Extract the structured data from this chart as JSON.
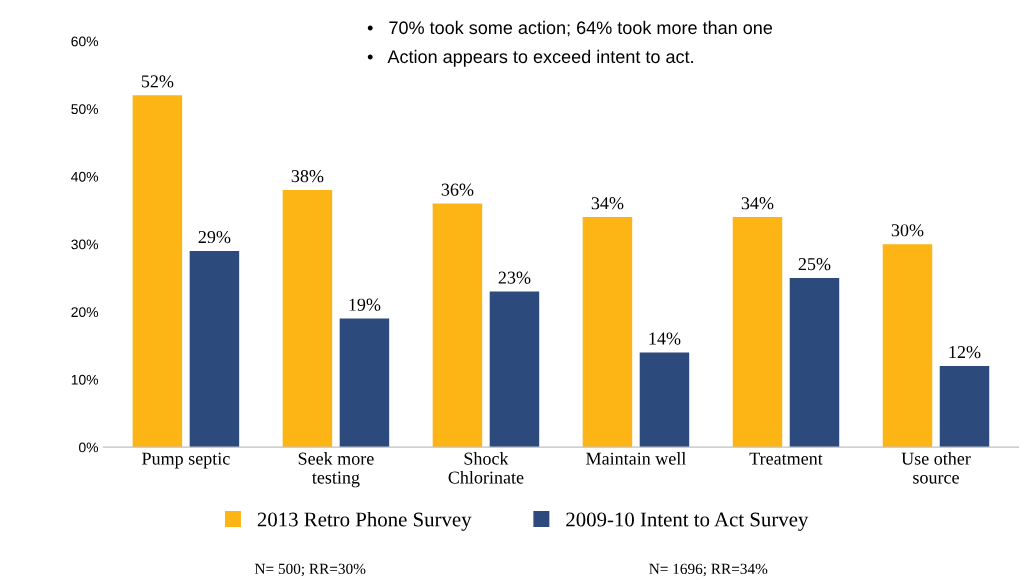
{
  "chart_data": {
    "type": "bar",
    "categories": [
      "Pump septic",
      "Seek more testing",
      "Shock Chlorinate",
      "Maintain well",
      "Treatment",
      "Use other source"
    ],
    "series": [
      {
        "name": "2013 Retro Phone Survey",
        "color": "#fdb515",
        "values": [
          52,
          38,
          36,
          34,
          34,
          30
        ],
        "value_labels": [
          "52%",
          "38%",
          "36%",
          "34%",
          "34%",
          "30%"
        ]
      },
      {
        "name": "2009-10 Intent to Act Survey",
        "color": "#2d4a7c",
        "values": [
          29,
          19,
          23,
          14,
          25,
          12
        ],
        "value_labels": [
          "29%",
          "19%",
          "23%",
          "14%",
          "25%",
          "12%"
        ]
      }
    ],
    "ylim": [
      0,
      60
    ],
    "yticks": [
      {
        "value": 0,
        "label": "0%"
      },
      {
        "value": 10,
        "label": "10%"
      },
      {
        "value": 20,
        "label": "20%"
      },
      {
        "value": 30,
        "label": "30%"
      },
      {
        "value": 40,
        "label": "40%"
      },
      {
        "value": 50,
        "label": "50%"
      },
      {
        "value": 60,
        "label": "60%"
      }
    ],
    "grid": false,
    "legend": "bottom",
    "annotations": [
      "•   70% took some action; 64% took more than one",
      "•   Action appears to exceed intent to act.",
      "N= 500; RR=30%",
      "N= 1696; RR=34%"
    ]
  }
}
